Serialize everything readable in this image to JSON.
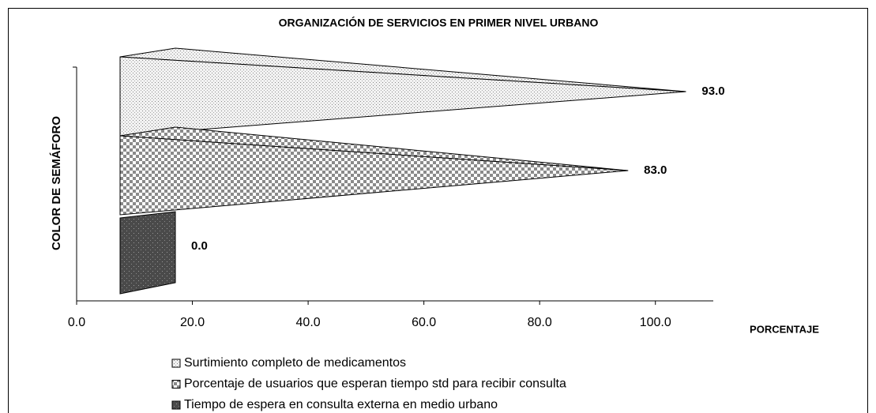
{
  "chart_data": {
    "type": "bar",
    "orientation": "horizontal",
    "title": "ORGANIZACIÓN DE SERVICIOS EN PRIMER NIVEL URBANO",
    "x_label": "PORCENTAJE",
    "y_label": "COLOR DE SEMÁFORO",
    "series": [
      {
        "name": "Surtimiento completo de medicamentos",
        "color": "#e4e4e4",
        "values": [
          93.0
        ],
        "value_labels": [
          "93.0"
        ]
      },
      {
        "name": "Porcentaje de usuarios que esperan tiempo std para recibir consulta",
        "color": "#9a9a9a",
        "values": [
          83.0
        ],
        "value_labels": [
          "83.0"
        ]
      },
      {
        "name": "Tiempo de espera en consulta externa en medio urbano",
        "color": "#555555",
        "values": [
          0.0
        ],
        "value_labels": [
          "0.0"
        ]
      }
    ],
    "xlim": [
      0,
      110
    ],
    "xticks": [
      {
        "value": 0,
        "label": "0.0"
      },
      {
        "value": 20,
        "label": "20.0"
      },
      {
        "value": 40,
        "label": "40.0"
      },
      {
        "value": 60,
        "label": "60.0"
      },
      {
        "value": 80,
        "label": "80.0"
      },
      {
        "value": 100,
        "label": "100.0"
      }
    ],
    "legend": "bottom"
  }
}
